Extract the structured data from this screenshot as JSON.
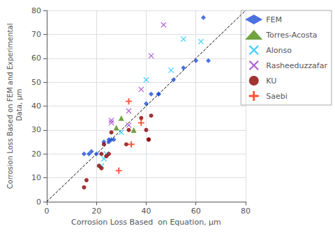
{
  "chart_data": {
    "type": "scatter",
    "title": "",
    "xlabel": "Corrosion Loss Based  on Equation, μm",
    "ylabel": "Corrosion Loss Based on FEM and Experimental\n Data, μm",
    "xlim": [
      0,
      80
    ],
    "ylim": [
      0,
      80
    ],
    "xticks": [
      0,
      20,
      40,
      60,
      80
    ],
    "yticks": [
      0,
      10,
      20,
      30,
      40,
      50,
      60,
      70,
      80
    ],
    "grid": true,
    "legend": "right",
    "series": [
      {
        "name": "FEM",
        "color": "#1F4FD8",
        "marker": "diamond",
        "x": [
          15,
          17,
          18,
          20,
          23,
          25,
          25,
          26,
          27,
          40,
          42,
          45,
          45,
          51,
          55,
          60,
          63,
          65
        ],
        "values": [
          20,
          20,
          21,
          20,
          25,
          25,
          26,
          26,
          26,
          41,
          45,
          45,
          45,
          51,
          56,
          59,
          77,
          59
        ]
      },
      {
        "name": "Torres-Acosta",
        "color": "#4D8C0F",
        "marker": "triangle",
        "x": [
          28,
          30,
          35
        ],
        "values": [
          31,
          35,
          30
        ]
      },
      {
        "name": "Alonso",
        "color": "#00BFFF",
        "marker": "x",
        "x": [
          22,
          23,
          24,
          30,
          40,
          50,
          55,
          62
        ],
        "values": [
          15,
          18,
          20,
          29,
          51,
          55,
          68,
          67
        ]
      },
      {
        "name": "Rasheeduzzafar",
        "color": "#9B30D0",
        "marker": "x",
        "x": [
          26,
          26,
          33,
          33,
          38,
          42,
          47
        ],
        "values": [
          34,
          33,
          38,
          32,
          47,
          61,
          74
        ]
      },
      {
        "name": "KU",
        "color": "#8B0000",
        "marker": "circle",
        "x": [
          15,
          16,
          21,
          22,
          22,
          23,
          24,
          25,
          26,
          32,
          33,
          38,
          40,
          41,
          41,
          42
        ],
        "values": [
          6,
          9,
          15,
          14,
          20,
          24,
          19,
          20,
          29,
          24,
          30,
          35,
          30,
          26,
          26,
          36
        ]
      },
      {
        "name": "Saebi",
        "color": "#FF2200",
        "marker": "plus",
        "x": [
          29,
          33,
          34,
          38
        ],
        "values": [
          13,
          42,
          24,
          33
        ]
      }
    ],
    "diagonal_line": {
      "x": [
        0,
        80
      ],
      "y": [
        0,
        80
      ],
      "color": "black",
      "line_style": "dashed"
    }
  }
}
